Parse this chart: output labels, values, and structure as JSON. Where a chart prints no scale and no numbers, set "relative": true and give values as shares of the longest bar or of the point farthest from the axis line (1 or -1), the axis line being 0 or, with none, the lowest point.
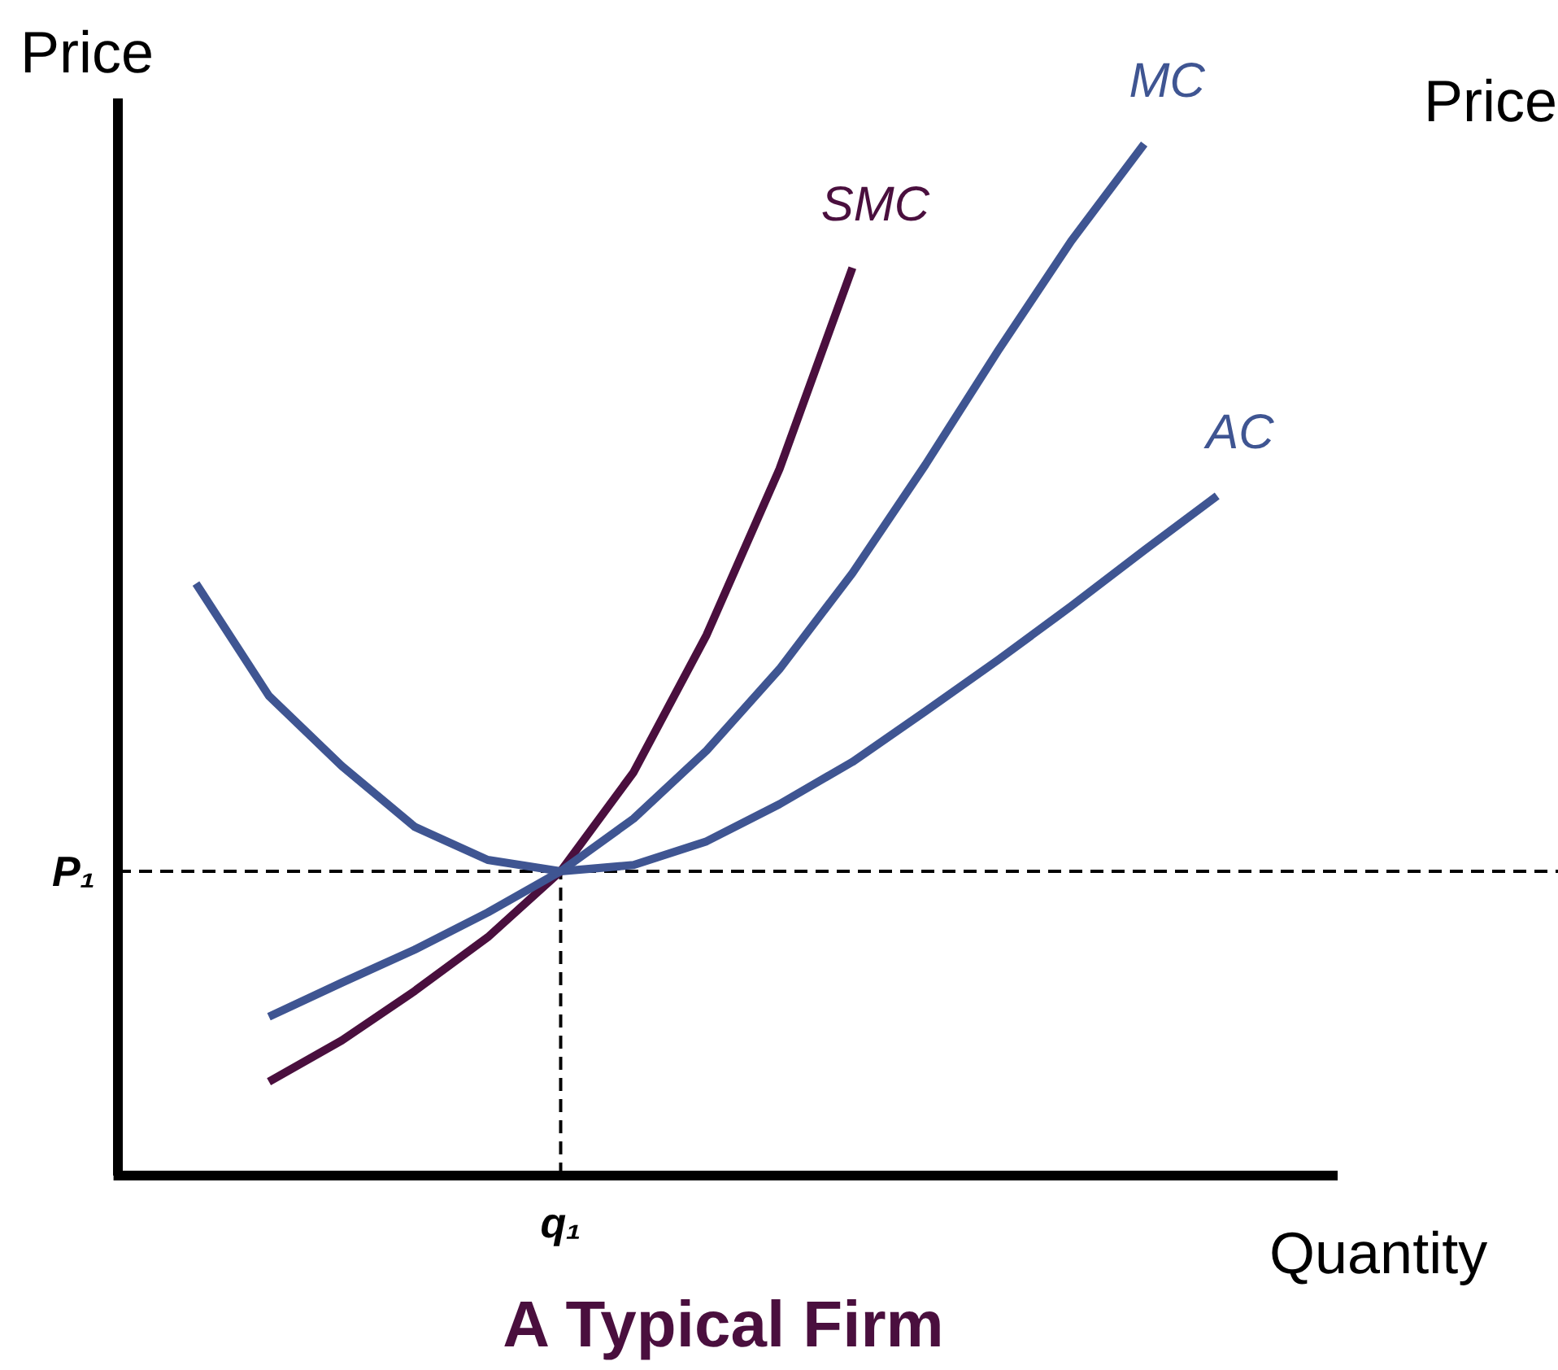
{
  "chart_data": {
    "type": "line",
    "relative": true,
    "title": "A Typical Firm",
    "xlabel": "Quantity",
    "ylabel": "Price",
    "categories": [
      null,
      null,
      null,
      null,
      null,
      null,
      null,
      null,
      null,
      null,
      null,
      null,
      null,
      null,
      null
    ],
    "annotations": [
      "Price",
      "q₁"
    ],
    "ref_lines": [
      {
        "axis": "y",
        "value": 0.295,
        "label": "P₁",
        "color": "#000000",
        "line_style": "dashed"
      }
    ],
    "series": [
      {
        "name": "SMC",
        "color": "#4a0f3e",
        "values": [
          null,
          0.091,
          0.131,
          0.179,
          0.231,
          0.295,
          0.391,
          0.524,
          0.685,
          0.88,
          null,
          null,
          null,
          null,
          null
        ]
      },
      {
        "name": "MC",
        "color": "#3f5592",
        "values": [
          null,
          0.154,
          0.187,
          0.219,
          0.255,
          0.295,
          0.346,
          0.412,
          0.491,
          0.584,
          0.689,
          0.8,
          0.906,
          1.0,
          null
        ]
      },
      {
        "name": "AC",
        "color": "#3f5592",
        "values": [
          0.574,
          0.465,
          0.397,
          0.338,
          0.306,
          0.295,
          0.301,
          0.324,
          0.36,
          0.401,
          0.45,
          0.5,
          0.552,
          0.606,
          0.659
        ]
      }
    ]
  }
}
